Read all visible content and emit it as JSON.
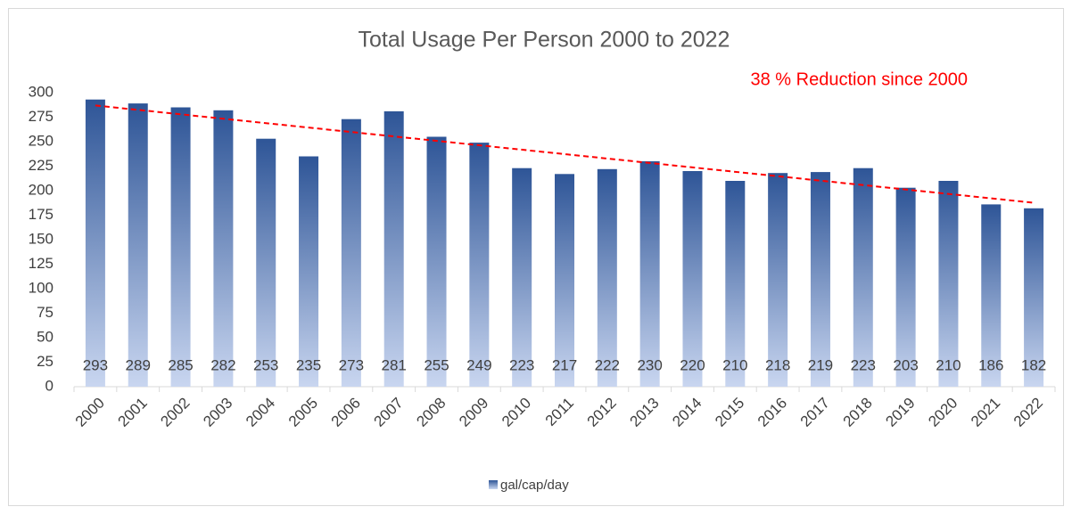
{
  "chart_data": {
    "type": "bar",
    "title": "Total Usage Per Person 2000 to 2022",
    "annotation": "38 % Reduction since 2000",
    "categories": [
      "2000",
      "2001",
      "2002",
      "2003",
      "2004",
      "2005",
      "2006",
      "2007",
      "2008",
      "2009",
      "2010",
      "2011",
      "2012",
      "2013",
      "2014",
      "2015",
      "2016",
      "2017",
      "2018",
      "2019",
      "2020",
      "2021",
      "2022"
    ],
    "series": [
      {
        "name": "gal/cap/day",
        "color": "#2e5597",
        "values": [
          293,
          289,
          285,
          282,
          253,
          235,
          273,
          281,
          255,
          249,
          223,
          217,
          222,
          230,
          220,
          210,
          218,
          219,
          223,
          203,
          210,
          186,
          182
        ]
      }
    ],
    "ylim": [
      0,
      300
    ],
    "yticks": [
      0,
      25,
      50,
      75,
      100,
      125,
      150,
      175,
      200,
      225,
      250,
      275,
      300
    ],
    "grid": false,
    "trendline": true,
    "trendline_color": "#ff0000",
    "legend": "bottom"
  }
}
